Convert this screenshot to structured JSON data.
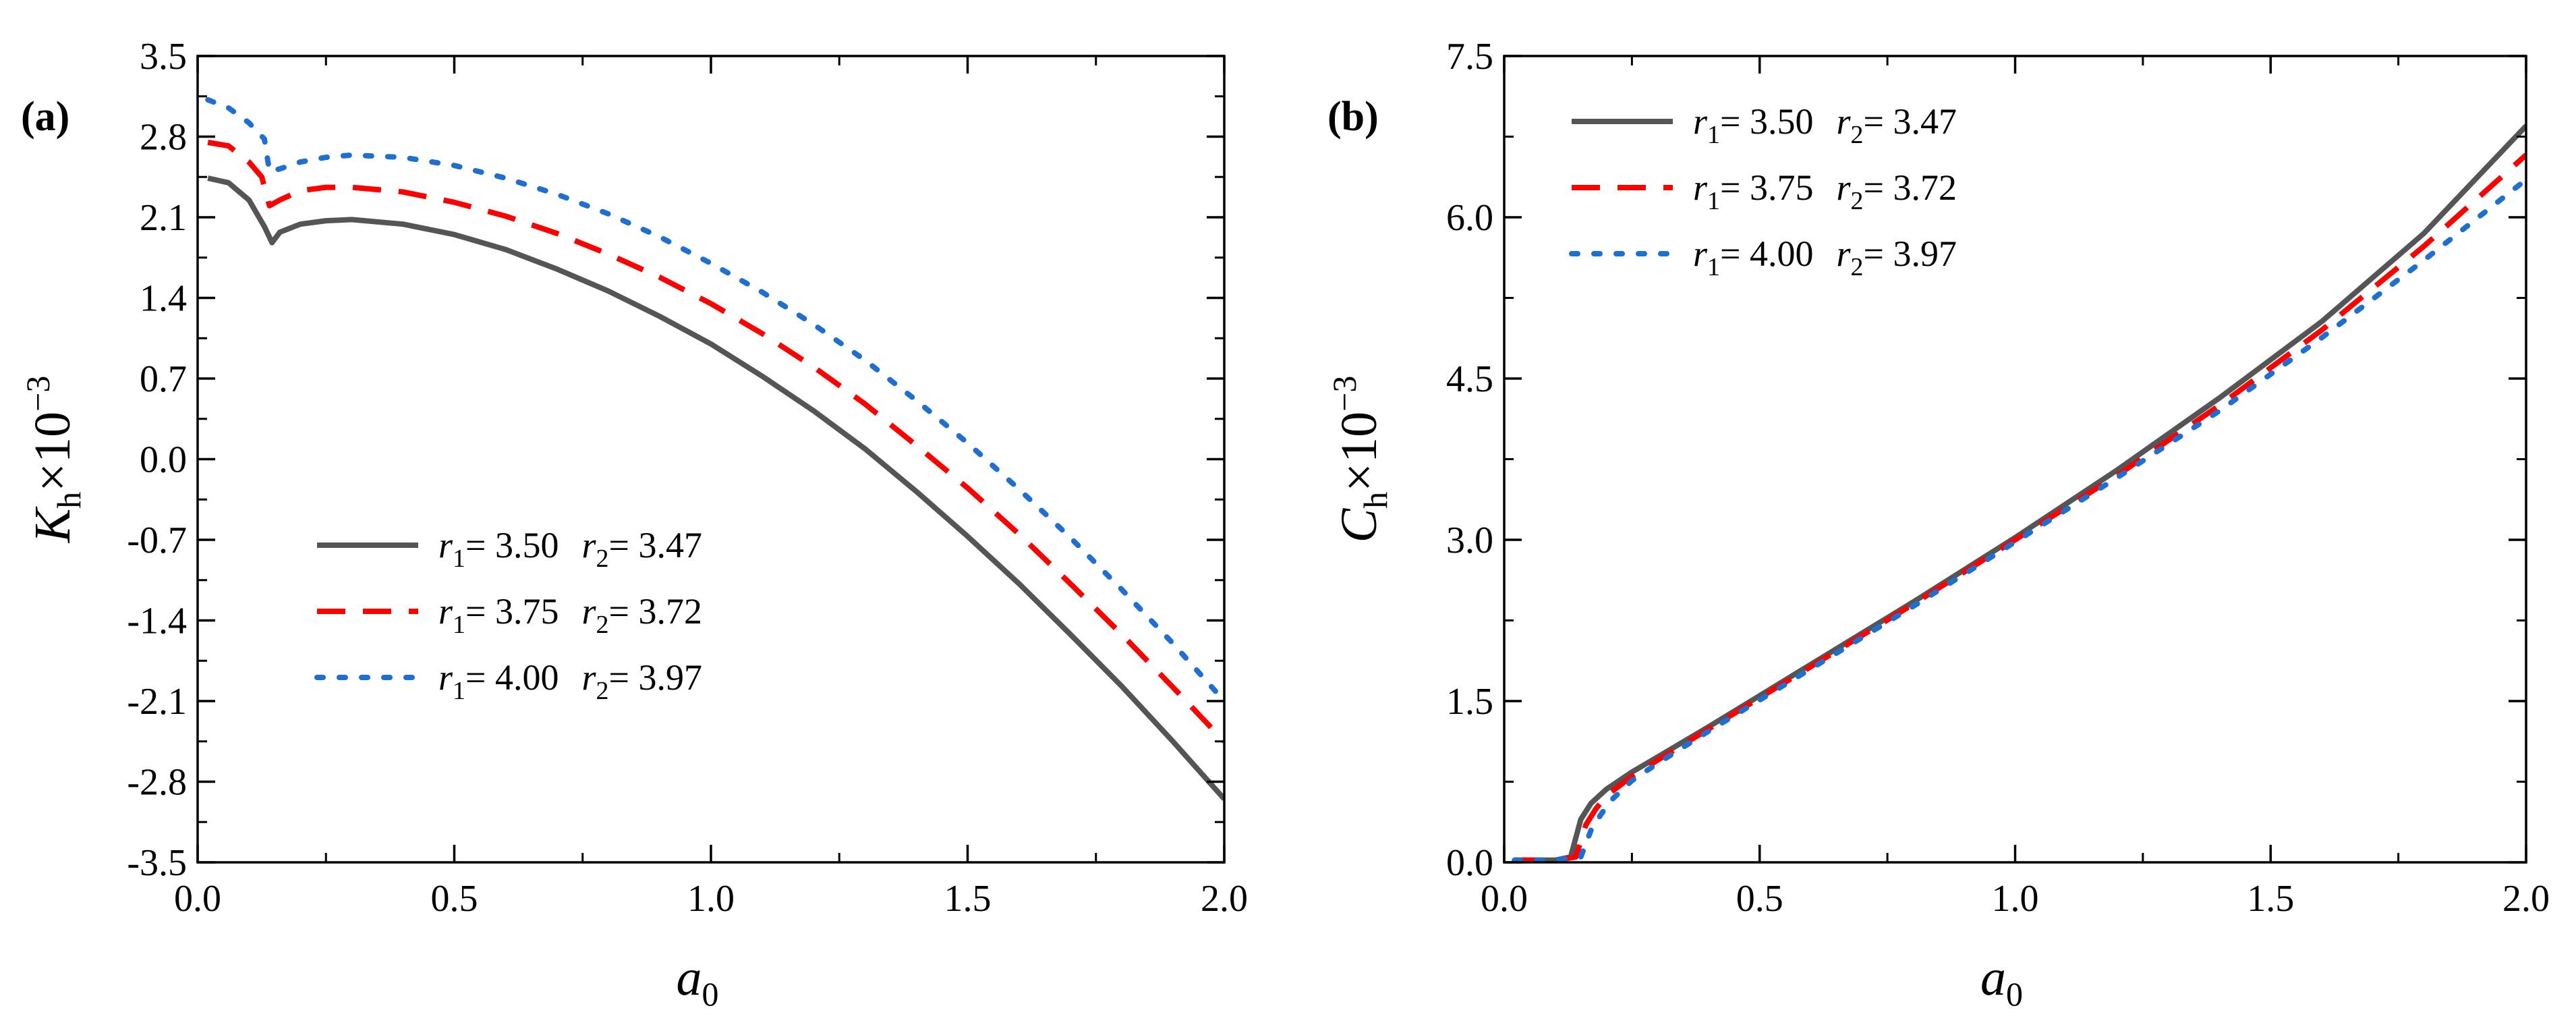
{
  "chart_data": [
    {
      "type": "line",
      "panel_label": "(a)",
      "xlabel": {
        "base": "a",
        "sub": "0"
      },
      "ylabel": {
        "base": "K",
        "sub": "h",
        "suffix": "×10",
        "sup": "−3"
      },
      "xlim": [
        0.0,
        2.0
      ],
      "ylim": [
        -3.5,
        3.5
      ],
      "xticks": [
        "0.0",
        "0.5",
        "1.0",
        "1.5",
        "2.0"
      ],
      "yticks": [
        "-3.5",
        "-2.8",
        "-2.1",
        "-1.4",
        "-0.7",
        "0.0",
        "0.7",
        "1.4",
        "2.1",
        "2.8",
        "3.5"
      ],
      "legend_position": "center-left",
      "series": [
        {
          "name": "r1= 3.50 r2= 3.47",
          "r1": "3.50",
          "r2": "3.47",
          "color": "#555555",
          "dash": "solid",
          "x": [
            0.02,
            0.06,
            0.1,
            0.13,
            0.145,
            0.16,
            0.2,
            0.25,
            0.3,
            0.4,
            0.5,
            0.6,
            0.7,
            0.8,
            0.9,
            1.0,
            1.1,
            1.2,
            1.3,
            1.4,
            1.5,
            1.6,
            1.7,
            1.8,
            1.9,
            2.0
          ],
          "y": [
            2.44,
            2.4,
            2.25,
            2.02,
            1.88,
            1.97,
            2.04,
            2.07,
            2.08,
            2.04,
            1.95,
            1.82,
            1.65,
            1.46,
            1.24,
            1.0,
            0.72,
            0.42,
            0.09,
            -0.28,
            -0.67,
            -1.08,
            -1.52,
            -1.97,
            -2.45,
            -2.95
          ]
        },
        {
          "name": "r1= 3.75 r2= 3.72",
          "r1": "3.75",
          "r2": "3.72",
          "color": "#ff0000",
          "dash": "dashed",
          "x": [
            0.02,
            0.06,
            0.1,
            0.125,
            0.14,
            0.16,
            0.2,
            0.25,
            0.3,
            0.4,
            0.5,
            0.6,
            0.7,
            0.8,
            0.9,
            1.0,
            1.1,
            1.2,
            1.3,
            1.4,
            1.5,
            1.6,
            1.7,
            1.8,
            1.9,
            2.0
          ],
          "y": [
            2.75,
            2.72,
            2.58,
            2.45,
            2.2,
            2.25,
            2.33,
            2.36,
            2.36,
            2.32,
            2.23,
            2.11,
            1.96,
            1.78,
            1.58,
            1.35,
            1.09,
            0.8,
            0.48,
            0.12,
            -0.25,
            -0.65,
            -1.08,
            -1.52,
            -1.98,
            -2.45
          ]
        },
        {
          "name": "r1= 4.00 r2= 3.97",
          "r1": "4.00",
          "r2": "3.97",
          "color": "#1f6fd1",
          "dash": "dotted",
          "x": [
            0.02,
            0.06,
            0.1,
            0.13,
            0.14,
            0.16,
            0.2,
            0.25,
            0.3,
            0.4,
            0.5,
            0.6,
            0.7,
            0.8,
            0.9,
            1.0,
            1.1,
            1.2,
            1.3,
            1.4,
            1.5,
            1.6,
            1.7,
            1.8,
            1.9,
            2.0
          ],
          "y": [
            3.12,
            3.05,
            2.92,
            2.78,
            2.5,
            2.52,
            2.58,
            2.62,
            2.64,
            2.62,
            2.55,
            2.44,
            2.3,
            2.13,
            1.93,
            1.7,
            1.45,
            1.17,
            0.86,
            0.51,
            0.14,
            -0.26,
            -0.68,
            -1.13,
            -1.6,
            -2.1
          ]
        }
      ]
    },
    {
      "type": "line",
      "panel_label": "(b)",
      "xlabel": {
        "base": "a",
        "sub": "0"
      },
      "ylabel": {
        "base": "C",
        "sub": "h",
        "suffix": "×10",
        "sup": "−3"
      },
      "xlim": [
        0.0,
        2.0
      ],
      "ylim": [
        0.0,
        7.5
      ],
      "xticks": [
        "0.0",
        "0.5",
        "1.0",
        "1.5",
        "2.0"
      ],
      "yticks": [
        "0.0",
        "1.5",
        "3.0",
        "4.5",
        "6.0",
        "7.5"
      ],
      "legend_position": "top-left",
      "series": [
        {
          "name": "r1= 3.50 r2= 3.47",
          "r1": "3.50",
          "r2": "3.47",
          "color": "#555555",
          "dash": "solid",
          "x": [
            0.02,
            0.05,
            0.1,
            0.13,
            0.15,
            0.17,
            0.2,
            0.25,
            0.3,
            0.4,
            0.5,
            0.6,
            0.7,
            0.8,
            0.9,
            1.0,
            1.2,
            1.4,
            1.6,
            1.8,
            2.0
          ],
          "y": [
            0.02,
            0.02,
            0.02,
            0.05,
            0.4,
            0.55,
            0.68,
            0.84,
            0.98,
            1.26,
            1.55,
            1.84,
            2.13,
            2.42,
            2.72,
            3.02,
            3.65,
            4.32,
            5.03,
            5.85,
            6.85
          ]
        },
        {
          "name": "r1= 3.75 r2= 3.72",
          "r1": "3.75",
          "r2": "3.72",
          "color": "#ff0000",
          "dash": "dashed",
          "x": [
            0.02,
            0.05,
            0.1,
            0.14,
            0.16,
            0.18,
            0.2,
            0.25,
            0.3,
            0.4,
            0.5,
            0.6,
            0.7,
            0.8,
            0.9,
            1.0,
            1.2,
            1.4,
            1.6,
            1.8,
            2.0
          ],
          "y": [
            0.02,
            0.02,
            0.02,
            0.05,
            0.35,
            0.5,
            0.62,
            0.8,
            0.95,
            1.24,
            1.53,
            1.82,
            2.11,
            2.4,
            2.7,
            3.0,
            3.6,
            4.25,
            4.95,
            5.73,
            6.58
          ]
        },
        {
          "name": "r1= 4.00 r2= 3.97",
          "r1": "4.00",
          "r2": "3.97",
          "color": "#1f6fd1",
          "dash": "dotted",
          "x": [
            0.02,
            0.05,
            0.1,
            0.15,
            0.17,
            0.19,
            0.21,
            0.25,
            0.3,
            0.4,
            0.5,
            0.6,
            0.7,
            0.8,
            0.9,
            1.0,
            1.2,
            1.4,
            1.6,
            1.8,
            2.0
          ],
          "y": [
            0.02,
            0.02,
            0.02,
            0.05,
            0.3,
            0.45,
            0.58,
            0.76,
            0.92,
            1.22,
            1.51,
            1.8,
            2.09,
            2.38,
            2.68,
            2.98,
            3.58,
            4.2,
            4.88,
            5.6,
            6.35
          ]
        }
      ]
    }
  ]
}
